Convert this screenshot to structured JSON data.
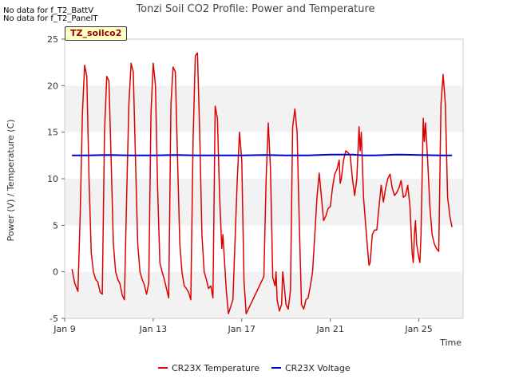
{
  "notes": [
    "No data for f_T2_BattV",
    "No data for f_T2_PanelT"
  ],
  "site_badge": "TZ_soilco2",
  "chart_data": {
    "type": "line",
    "title": "Tonzi Soil CO2 Profile: Power and Temperature",
    "xlabel": "Time",
    "ylabel": "Power (V) / Temperature (C)",
    "xlim": [
      9,
      27
    ],
    "ylim": [
      -5,
      25
    ],
    "x_ticks": [
      9,
      13,
      17,
      21,
      25
    ],
    "x_tick_labels": [
      "Jan 9",
      "Jan 13",
      "Jan 17",
      "Jan 21",
      "Jan 25"
    ],
    "y_ticks": [
      -5,
      0,
      5,
      10,
      15,
      20,
      25
    ],
    "grid": "horizontal bands",
    "legend_position": "bottom-center",
    "series": [
      {
        "name": "CR23X Temperature",
        "color": "#dd0000",
        "points": [
          [
            9.33,
            0.3
          ],
          [
            9.45,
            -1.2
          ],
          [
            9.6,
            -2.1
          ],
          [
            9.7,
            6
          ],
          [
            9.8,
            17
          ],
          [
            9.9,
            22.2
          ],
          [
            10.0,
            21
          ],
          [
            10.1,
            10
          ],
          [
            10.2,
            2
          ],
          [
            10.3,
            0
          ],
          [
            10.4,
            -0.8
          ],
          [
            10.5,
            -1.1
          ],
          [
            10.6,
            -2.2
          ],
          [
            10.7,
            -2.4
          ],
          [
            10.8,
            15
          ],
          [
            10.9,
            21
          ],
          [
            11.0,
            20.5
          ],
          [
            11.1,
            12
          ],
          [
            11.2,
            3
          ],
          [
            11.3,
            0
          ],
          [
            11.4,
            -0.8
          ],
          [
            11.5,
            -1.3
          ],
          [
            11.6,
            -2.5
          ],
          [
            11.7,
            -3
          ],
          [
            11.8,
            8
          ],
          [
            11.9,
            18
          ],
          [
            12.0,
            22.4
          ],
          [
            12.1,
            21.5
          ],
          [
            12.2,
            12
          ],
          [
            12.3,
            3
          ],
          [
            12.4,
            0
          ],
          [
            12.5,
            -0.8
          ],
          [
            12.6,
            -1.4
          ],
          [
            12.7,
            -2.4
          ],
          [
            12.8,
            -1.2
          ],
          [
            12.9,
            17
          ],
          [
            13.0,
            22.4
          ],
          [
            13.1,
            20
          ],
          [
            13.2,
            9
          ],
          [
            13.3,
            1
          ],
          [
            13.4,
            0
          ],
          [
            13.5,
            -0.8
          ],
          [
            13.6,
            -1.8
          ],
          [
            13.7,
            -2.8
          ],
          [
            13.8,
            18
          ],
          [
            13.9,
            22
          ],
          [
            14.0,
            21.5
          ],
          [
            14.1,
            12
          ],
          [
            14.2,
            3
          ],
          [
            14.3,
            0
          ],
          [
            14.4,
            -1.5
          ],
          [
            14.5,
            -1.8
          ],
          [
            14.6,
            -2.2
          ],
          [
            14.7,
            -3
          ],
          [
            14.8,
            14
          ],
          [
            14.9,
            23.2
          ],
          [
            15.0,
            23.5
          ],
          [
            15.1,
            15
          ],
          [
            15.2,
            4
          ],
          [
            15.3,
            0
          ],
          [
            15.4,
            -0.8
          ],
          [
            15.5,
            -1.8
          ],
          [
            15.6,
            -1.5
          ],
          [
            15.7,
            -2.8
          ],
          [
            15.8,
            17.8
          ],
          [
            15.9,
            16.5
          ],
          [
            16.0,
            8
          ],
          [
            16.1,
            2.5
          ],
          [
            16.15,
            4
          ],
          [
            16.2,
            2
          ],
          [
            16.3,
            -2
          ],
          [
            16.4,
            -4.5
          ],
          [
            16.6,
            -3
          ],
          [
            16.8,
            10
          ],
          [
            16.9,
            15
          ],
          [
            17.0,
            12
          ],
          [
            17.1,
            -1
          ],
          [
            17.2,
            -4.5
          ],
          [
            17.5,
            -3
          ],
          [
            17.8,
            -1.5
          ],
          [
            18.0,
            -0.5
          ],
          [
            18.1,
            10
          ],
          [
            18.2,
            16
          ],
          [
            18.3,
            11
          ],
          [
            18.4,
            -0.6
          ],
          [
            18.5,
            -1.5
          ],
          [
            18.55,
            0
          ],
          [
            18.6,
            -3
          ],
          [
            18.7,
            -4.2
          ],
          [
            18.8,
            -3.5
          ],
          [
            18.85,
            0
          ],
          [
            18.9,
            -1
          ],
          [
            19.0,
            -3.5
          ],
          [
            19.1,
            -4
          ],
          [
            19.2,
            -2
          ],
          [
            19.3,
            15.5
          ],
          [
            19.4,
            17.5
          ],
          [
            19.5,
            15
          ],
          [
            19.6,
            5
          ],
          [
            19.7,
            -3.5
          ],
          [
            19.8,
            -4
          ],
          [
            19.9,
            -3
          ],
          [
            20.0,
            -2.8
          ],
          [
            20.1,
            -1.5
          ],
          [
            20.2,
            0
          ],
          [
            20.3,
            4
          ],
          [
            20.4,
            8
          ],
          [
            20.5,
            10.6
          ],
          [
            20.6,
            8
          ],
          [
            20.7,
            5.5
          ],
          [
            20.8,
            6
          ],
          [
            20.9,
            6.8
          ],
          [
            21.0,
            7
          ],
          [
            21.1,
            9
          ],
          [
            21.2,
            10.5
          ],
          [
            21.3,
            11
          ],
          [
            21.4,
            12
          ],
          [
            21.45,
            9.5
          ],
          [
            21.5,
            10
          ],
          [
            21.6,
            12
          ],
          [
            21.7,
            13
          ],
          [
            21.8,
            12.8
          ],
          [
            21.9,
            12.5
          ],
          [
            22.0,
            10
          ],
          [
            22.1,
            8.2
          ],
          [
            22.2,
            10
          ],
          [
            22.3,
            15.6
          ],
          [
            22.35,
            13
          ],
          [
            22.4,
            15
          ],
          [
            22.5,
            8
          ],
          [
            22.6,
            5
          ],
          [
            22.7,
            2
          ],
          [
            22.75,
            0.7
          ],
          [
            22.8,
            1
          ],
          [
            22.9,
            4
          ],
          [
            23.0,
            4.5
          ],
          [
            23.1,
            4.5
          ],
          [
            23.2,
            7
          ],
          [
            23.3,
            9.3
          ],
          [
            23.4,
            7.5
          ],
          [
            23.5,
            9
          ],
          [
            23.6,
            10
          ],
          [
            23.7,
            10.5
          ],
          [
            23.8,
            9
          ],
          [
            23.9,
            8.2
          ],
          [
            24.0,
            8.5
          ],
          [
            24.1,
            9
          ],
          [
            24.2,
            9.8
          ],
          [
            24.3,
            8
          ],
          [
            24.4,
            8.2
          ],
          [
            24.5,
            9.3
          ],
          [
            24.6,
            7
          ],
          [
            24.7,
            2
          ],
          [
            24.75,
            1
          ],
          [
            24.8,
            4
          ],
          [
            24.85,
            5.5
          ],
          [
            24.9,
            3
          ],
          [
            25.0,
            1.5
          ],
          [
            25.05,
            1
          ],
          [
            25.1,
            4
          ],
          [
            25.2,
            16.5
          ],
          [
            25.25,
            14
          ],
          [
            25.3,
            16
          ],
          [
            25.4,
            12
          ],
          [
            25.5,
            7
          ],
          [
            25.6,
            4
          ],
          [
            25.7,
            3
          ],
          [
            25.8,
            2.5
          ],
          [
            25.9,
            2.2
          ],
          [
            26.0,
            18
          ],
          [
            26.1,
            21.2
          ],
          [
            26.2,
            18
          ],
          [
            26.3,
            8
          ],
          [
            26.4,
            6
          ],
          [
            26.5,
            4.8
          ]
        ]
      },
      {
        "name": "CR23X Voltage",
        "color": "#0000cc",
        "points": [
          [
            9.33,
            12.5
          ],
          [
            10.0,
            12.5
          ],
          [
            11.0,
            12.55
          ],
          [
            12.0,
            12.5
          ],
          [
            13.0,
            12.5
          ],
          [
            14.0,
            12.55
          ],
          [
            15.0,
            12.5
          ],
          [
            16.0,
            12.5
          ],
          [
            17.0,
            12.5
          ],
          [
            18.0,
            12.55
          ],
          [
            19.0,
            12.5
          ],
          [
            20.0,
            12.5
          ],
          [
            21.0,
            12.6
          ],
          [
            22.0,
            12.6
          ],
          [
            22.5,
            12.5
          ],
          [
            23.0,
            12.5
          ],
          [
            24.0,
            12.6
          ],
          [
            25.0,
            12.55
          ],
          [
            26.0,
            12.5
          ],
          [
            26.5,
            12.5
          ]
        ]
      }
    ]
  }
}
